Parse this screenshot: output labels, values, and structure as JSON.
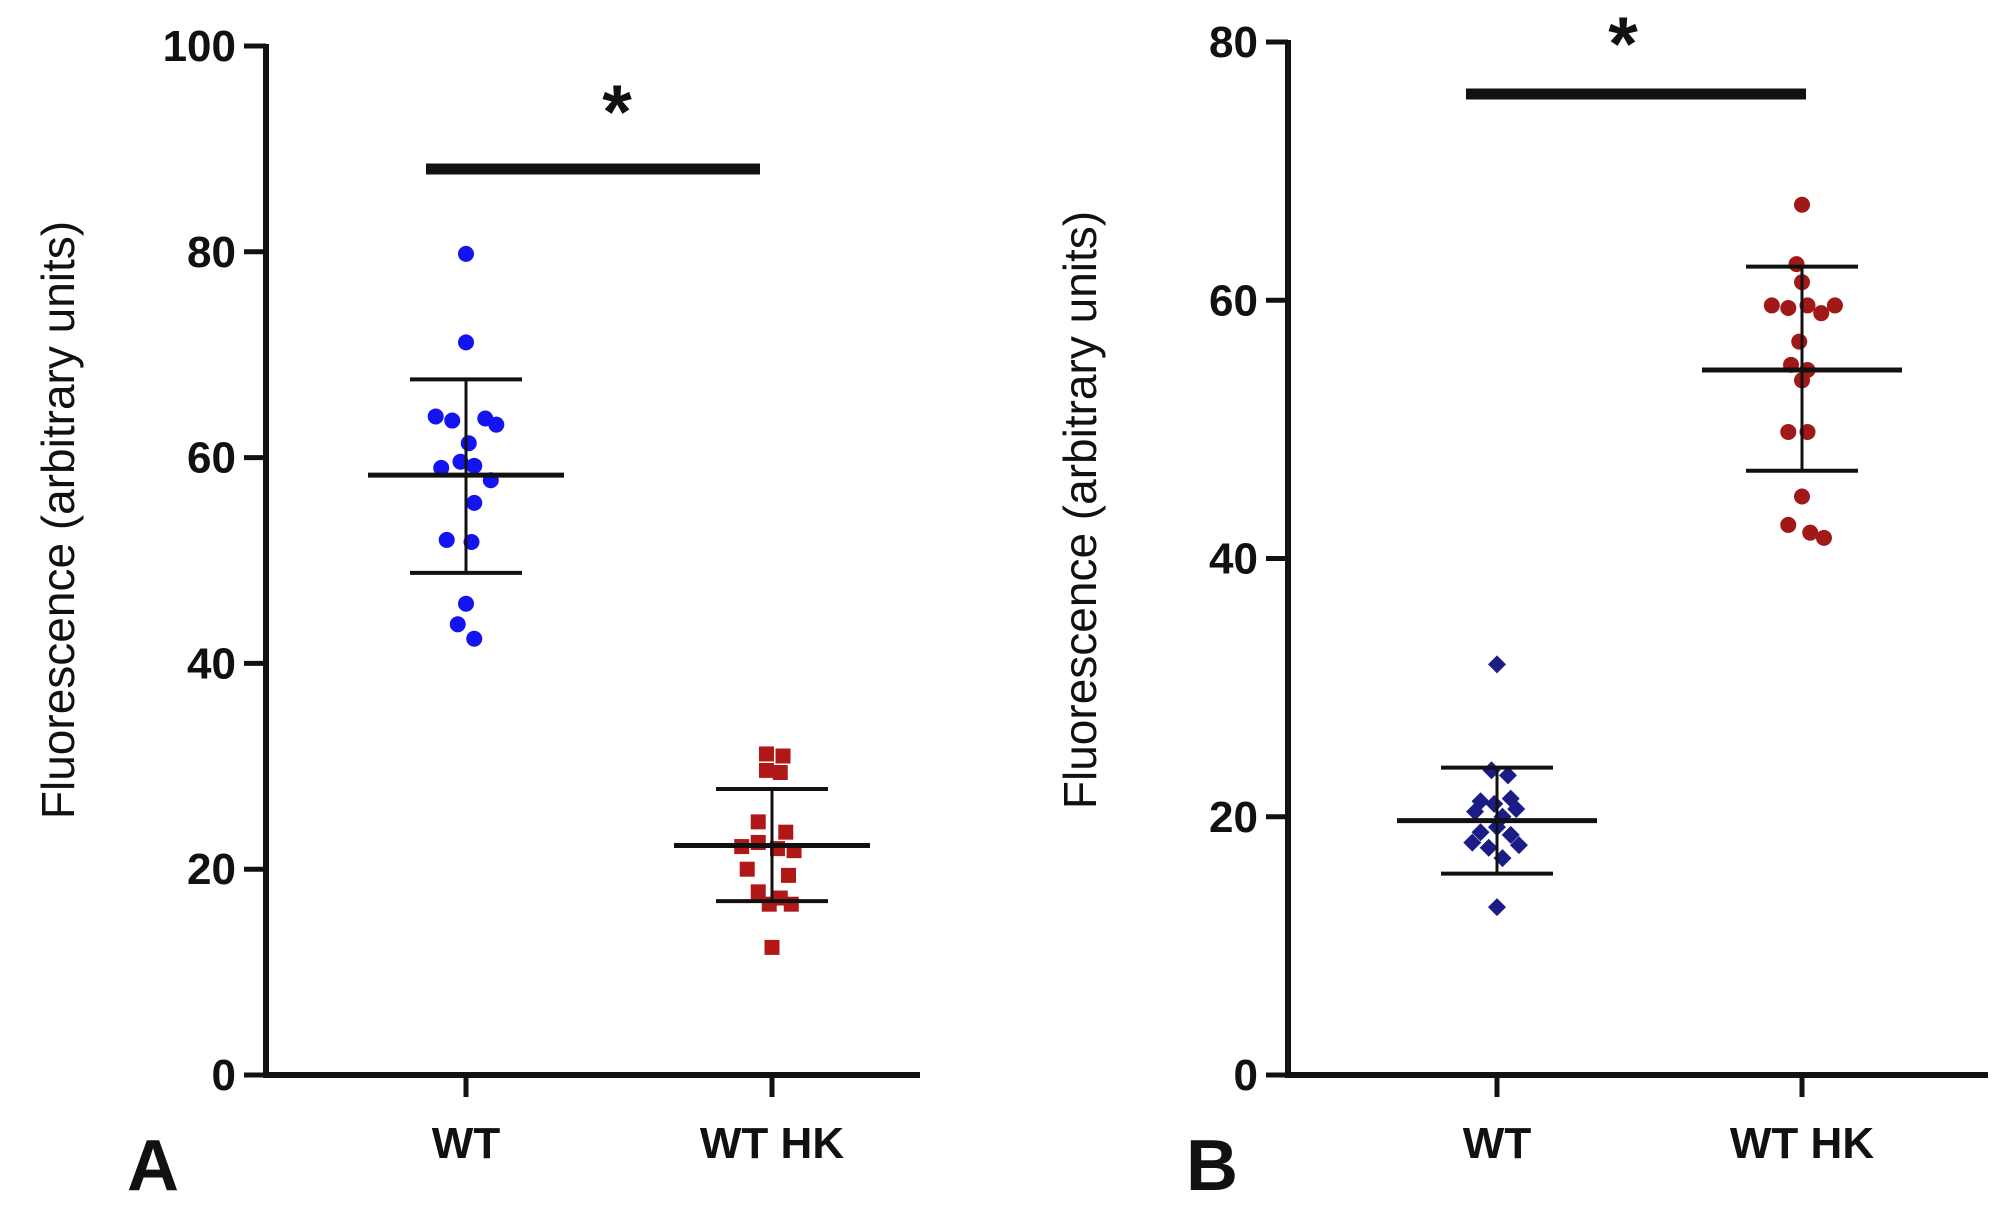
{
  "chart_data": [
    {
      "panel": "A",
      "type": "scatter",
      "ylabel": "Fluorescence (arbitrary units)",
      "xlabel": "",
      "ylim": [
        0,
        100
      ],
      "yticks": [
        0,
        20,
        40,
        60,
        80,
        100
      ],
      "categories": [
        "WT",
        "WT HK"
      ],
      "significance": "*",
      "series": [
        {
          "name": "WT",
          "marker": "circle",
          "color": "#1414f0",
          "mean": 58.3,
          "sd_low": 48.8,
          "sd_high": 67.6,
          "points": [
            {
              "x": 0.0,
              "y": 79.8
            },
            {
              "x": 0.0,
              "y": 71.2
            },
            {
              "x": -0.11,
              "y": 64.0
            },
            {
              "x": -0.05,
              "y": 63.6
            },
            {
              "x": 0.07,
              "y": 63.8
            },
            {
              "x": 0.11,
              "y": 63.2
            },
            {
              "x": 0.01,
              "y": 61.4
            },
            {
              "x": -0.09,
              "y": 59.0
            },
            {
              "x": -0.02,
              "y": 59.6
            },
            {
              "x": 0.03,
              "y": 59.2
            },
            {
              "x": 0.09,
              "y": 57.8
            },
            {
              "x": 0.03,
              "y": 55.6
            },
            {
              "x": -0.07,
              "y": 52.0
            },
            {
              "x": 0.02,
              "y": 51.8
            },
            {
              "x": 0.0,
              "y": 45.8
            },
            {
              "x": -0.03,
              "y": 43.8
            },
            {
              "x": 0.03,
              "y": 42.4
            }
          ]
        },
        {
          "name": "WT HK",
          "marker": "square",
          "color": "#b01818",
          "mean": 22.3,
          "sd_low": 16.9,
          "sd_high": 27.8,
          "points": [
            {
              "x": -0.02,
              "y": 31.2
            },
            {
              "x": 0.04,
              "y": 31.0
            },
            {
              "x": -0.02,
              "y": 29.6
            },
            {
              "x": 0.03,
              "y": 29.4
            },
            {
              "x": -0.05,
              "y": 24.6
            },
            {
              "x": 0.05,
              "y": 23.6
            },
            {
              "x": -0.11,
              "y": 22.2
            },
            {
              "x": -0.05,
              "y": 22.6
            },
            {
              "x": 0.02,
              "y": 22.0
            },
            {
              "x": 0.08,
              "y": 21.8
            },
            {
              "x": -0.09,
              "y": 20.0
            },
            {
              "x": 0.06,
              "y": 19.4
            },
            {
              "x": -0.05,
              "y": 17.8
            },
            {
              "x": 0.03,
              "y": 17.2
            },
            {
              "x": -0.01,
              "y": 16.6
            },
            {
              "x": 0.07,
              "y": 16.6
            },
            {
              "x": 0.0,
              "y": 12.4
            }
          ]
        }
      ]
    },
    {
      "panel": "B",
      "type": "scatter",
      "ylabel": "Fluorescence (arbitrary units)",
      "xlabel": "",
      "ylim": [
        0,
        80
      ],
      "yticks": [
        0,
        20,
        40,
        60,
        80
      ],
      "categories": [
        "WT",
        "WT HK"
      ],
      "significance": "*",
      "series": [
        {
          "name": "WT",
          "marker": "diamond",
          "color": "#1c1c86",
          "mean": 19.7,
          "sd_low": 15.6,
          "sd_high": 23.8,
          "points": [
            {
              "x": 0.0,
              "y": 31.8
            },
            {
              "x": -0.02,
              "y": 23.6
            },
            {
              "x": 0.04,
              "y": 23.2
            },
            {
              "x": -0.06,
              "y": 21.2
            },
            {
              "x": -0.01,
              "y": 21.0
            },
            {
              "x": 0.05,
              "y": 21.4
            },
            {
              "x": -0.08,
              "y": 20.4
            },
            {
              "x": 0.02,
              "y": 20.0
            },
            {
              "x": 0.07,
              "y": 20.6
            },
            {
              "x": -0.06,
              "y": 18.8
            },
            {
              "x": 0.0,
              "y": 19.2
            },
            {
              "x": 0.05,
              "y": 18.6
            },
            {
              "x": -0.09,
              "y": 18.0
            },
            {
              "x": -0.03,
              "y": 17.6
            },
            {
              "x": 0.08,
              "y": 17.8
            },
            {
              "x": 0.02,
              "y": 16.8
            },
            {
              "x": 0.0,
              "y": 13.0
            }
          ]
        },
        {
          "name": "WT HK",
          "marker": "circle",
          "color": "#a01818",
          "mean": 54.6,
          "sd_low": 46.8,
          "sd_high": 62.6,
          "points": [
            {
              "x": 0.0,
              "y": 67.4
            },
            {
              "x": -0.02,
              "y": 62.8
            },
            {
              "x": 0.0,
              "y": 61.4
            },
            {
              "x": -0.11,
              "y": 59.6
            },
            {
              "x": -0.05,
              "y": 59.4
            },
            {
              "x": 0.02,
              "y": 59.6
            },
            {
              "x": 0.07,
              "y": 59.0
            },
            {
              "x": 0.12,
              "y": 59.6
            },
            {
              "x": -0.01,
              "y": 56.8
            },
            {
              "x": -0.04,
              "y": 55.0
            },
            {
              "x": 0.02,
              "y": 54.6
            },
            {
              "x": 0.0,
              "y": 53.8
            },
            {
              "x": -0.05,
              "y": 49.8
            },
            {
              "x": 0.02,
              "y": 49.8
            },
            {
              "x": 0.0,
              "y": 44.8
            },
            {
              "x": -0.05,
              "y": 42.6
            },
            {
              "x": 0.03,
              "y": 42.0
            },
            {
              "x": 0.08,
              "y": 41.6
            }
          ]
        }
      ]
    }
  ]
}
